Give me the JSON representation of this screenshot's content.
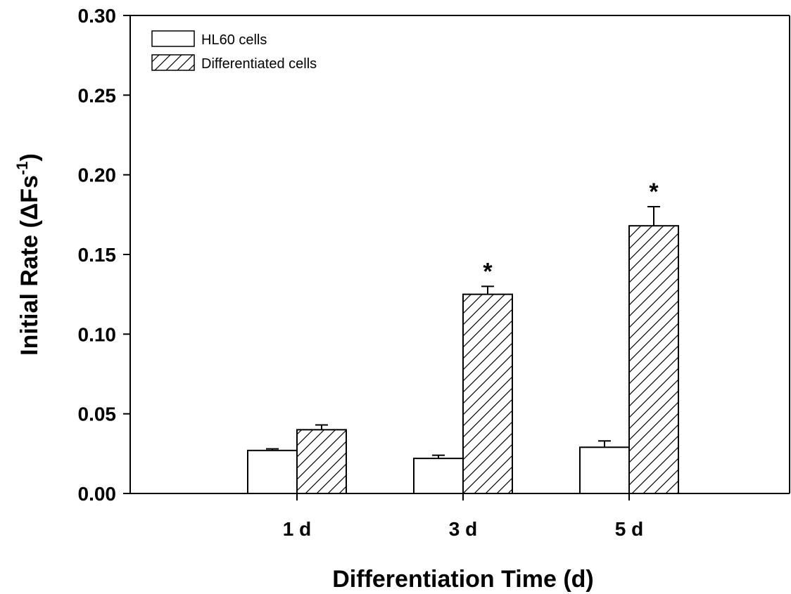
{
  "chart_data": {
    "type": "bar",
    "categories": [
      "1 d",
      "3 d",
      "5 d"
    ],
    "series": [
      {
        "name": "HL60 cells",
        "values": [
          0.027,
          0.022,
          0.029
        ],
        "errors": [
          0.001,
          0.002,
          0.004
        ],
        "fill": "#ffffff",
        "pattern": "none"
      },
      {
        "name": "Differentiated cells",
        "values": [
          0.04,
          0.125,
          0.168
        ],
        "errors": [
          0.003,
          0.005,
          0.012
        ],
        "fill": "#ffffff",
        "pattern": "hatch"
      }
    ],
    "significance": [
      "",
      "*",
      "*"
    ],
    "xlabel": "Differentiation Time (d)",
    "ylabel": "Initial Rate (ΔFs",
    "ylabel_sup": "-1",
    "ylabel_end": ")",
    "ylim": [
      0,
      0.3
    ],
    "yticks": [
      "0.00",
      "0.05",
      "0.10",
      "0.15",
      "0.20",
      "0.25",
      "0.30"
    ],
    "grid": false,
    "legend_position": "top-left"
  }
}
